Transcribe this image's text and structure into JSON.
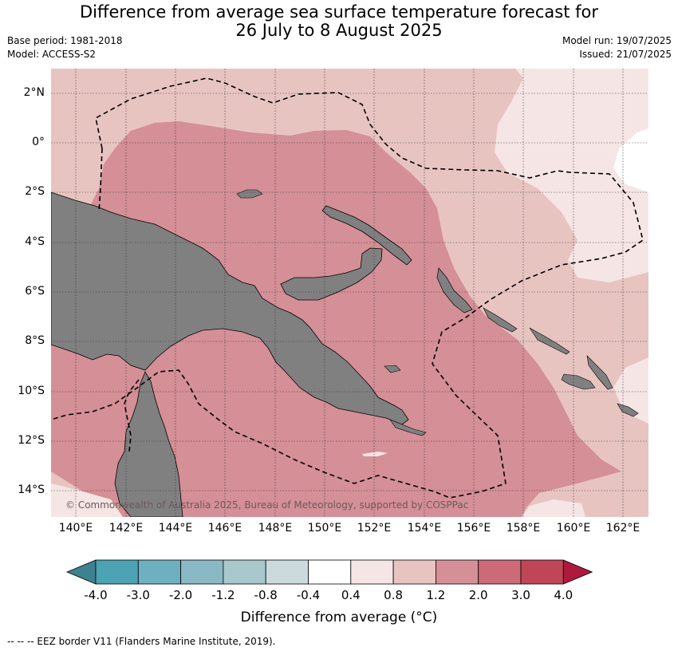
{
  "title": {
    "line1": "Difference from average sea surface temperature forecast for",
    "line2": "26 July to 8 August 2025"
  },
  "meta_left": {
    "base_period": "Base period: 1981-2018",
    "model": "Model: ACCESS-S2"
  },
  "meta_right": {
    "model_run": "Model run: 19/07/2025",
    "issued": "Issued: 21/07/2025"
  },
  "map": {
    "copyright": "© Commonwealth of Australia 2025, Bureau of Meteorology, supported by COSPPac",
    "lat_labels": [
      "2°N",
      "0°",
      "2°S",
      "4°S",
      "6°S",
      "8°S",
      "10°S",
      "12°S",
      "14°S"
    ],
    "lon_labels": [
      "140°E",
      "142°E",
      "144°E",
      "146°E",
      "148°E",
      "150°E",
      "152°E",
      "154°E",
      "156°E",
      "158°E",
      "160°E",
      "162°E"
    ],
    "colors": {
      "land": "#808080",
      "band_0_4_0_8": "#f5e6e5",
      "band_0_8_1_2": "#e8c4c1",
      "band_1_2_2_0": "#d58f96",
      "eez": "#000000"
    }
  },
  "legend": {
    "ticks": [
      "-4.0",
      "-3.0",
      "-2.0",
      "-1.2",
      "-0.8",
      "-0.4",
      "0.4",
      "0.8",
      "1.2",
      "2.0",
      "3.0",
      "4.0"
    ],
    "colors": [
      "#3e8291",
      "#4ba3b4",
      "#6fb0c0",
      "#8ab8c4",
      "#a8c8cd",
      "#ccdadd",
      "#ffffff",
      "#f5e6e5",
      "#e8c4c1",
      "#d58f96",
      "#cc6b77",
      "#bf4656",
      "#ae1a3c"
    ],
    "label": "Difference from average (°C)"
  },
  "footer": "--  --  -- EEZ border V11 (Flanders Marine Institute, 2019)."
}
